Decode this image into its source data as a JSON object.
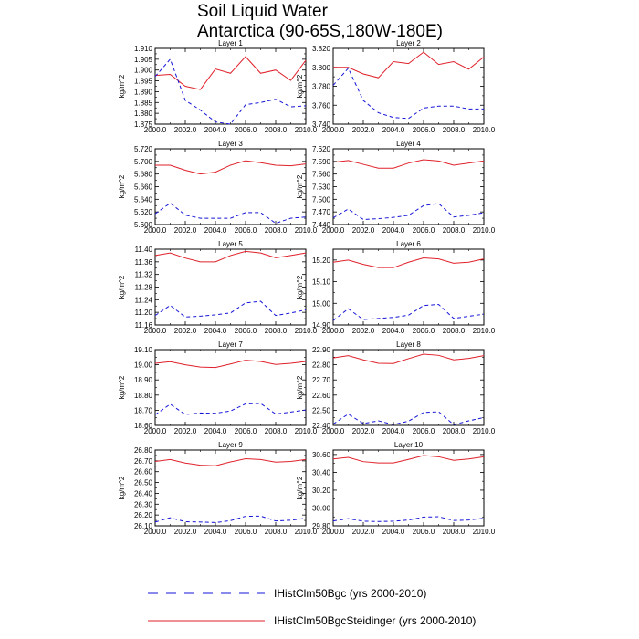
{
  "title_line1": "Soil Liquid Water",
  "title_line2": "Antarctica (90-65S,180W-180E)",
  "colors": {
    "dashed": "#1515d8",
    "solid": "#e0202a"
  },
  "legend": [
    {
      "label": "IHistClm50Bgc (yrs 2000-2010)",
      "style": "dashed",
      "color": "#1515d8"
    },
    {
      "label": "IHistClm50BgcSteidinger (yrs 2000-2010)",
      "style": "solid",
      "color": "#e0202a"
    }
  ],
  "chart_data": [
    {
      "type": "line",
      "title": "Layer 1",
      "xlabel": "",
      "ylabel": "kg/m^2",
      "xlim": [
        2000,
        2010
      ],
      "ylim": [
        1.875,
        1.91
      ],
      "xticks": [
        "2000.0",
        "2002.0",
        "2004.0",
        "2006.0",
        "2008.0",
        "2010.0"
      ],
      "yticks": [
        "1.875",
        "1.880",
        "1.885",
        "1.890",
        "1.895",
        "1.900",
        "1.905",
        "1.910"
      ],
      "x": [
        2000,
        2001,
        2002,
        2003,
        2004,
        2005,
        2006,
        2007,
        2008,
        2009,
        2010
      ],
      "series": [
        {
          "style": "solid",
          "values": [
            1.8975,
            1.898,
            1.8925,
            1.891,
            1.9005,
            1.8985,
            1.9062,
            1.8985,
            1.9,
            1.8952,
            1.9045
          ]
        },
        {
          "style": "dashed",
          "values": [
            1.897,
            1.905,
            1.886,
            1.8815,
            1.876,
            1.875,
            1.884,
            1.885,
            1.8865,
            1.883,
            1.8835
          ]
        }
      ]
    },
    {
      "type": "line",
      "title": "Layer 2",
      "xlabel": "",
      "ylabel": "kg/m^2",
      "xlim": [
        2000,
        2010
      ],
      "ylim": [
        3.74,
        3.82
      ],
      "xticks": [
        "2000.0",
        "2002.0",
        "2004.0",
        "2006.0",
        "2008.0",
        "2010.0"
      ],
      "yticks": [
        "3.740",
        "3.760",
        "3.780",
        "3.800",
        "3.820"
      ],
      "x": [
        2000,
        2001,
        2002,
        2003,
        2004,
        2005,
        2006,
        2007,
        2008,
        2009,
        2010
      ],
      "series": [
        {
          "style": "solid",
          "values": [
            3.8,
            3.8,
            3.793,
            3.789,
            3.806,
            3.804,
            3.816,
            3.803,
            3.806,
            3.798,
            3.811
          ]
        },
        {
          "style": "dashed",
          "values": [
            3.781,
            3.799,
            3.765,
            3.752,
            3.747,
            3.746,
            3.757,
            3.759,
            3.759,
            3.756,
            3.756
          ]
        }
      ]
    },
    {
      "type": "line",
      "title": "Layer 3",
      "xlabel": "",
      "ylabel": "kg/m^2",
      "xlim": [
        2000,
        2010
      ],
      "ylim": [
        5.6,
        5.72
      ],
      "xticks": [
        "2000.0",
        "2002.0",
        "2004.0",
        "2006.0",
        "2008.0",
        "2010.0"
      ],
      "yticks": [
        "5.600",
        "5.620",
        "5.640",
        "5.660",
        "5.680",
        "5.700",
        "5.720"
      ],
      "x": [
        2000,
        2001,
        2002,
        2003,
        2004,
        2005,
        2006,
        2007,
        2008,
        2009,
        2010
      ],
      "series": [
        {
          "style": "solid",
          "values": [
            5.694,
            5.694,
            5.686,
            5.68,
            5.683,
            5.694,
            5.701,
            5.698,
            5.694,
            5.693,
            5.696
          ]
        },
        {
          "style": "dashed",
          "values": [
            5.617,
            5.634,
            5.615,
            5.61,
            5.61,
            5.61,
            5.619,
            5.619,
            5.602,
            5.61,
            5.612
          ]
        }
      ]
    },
    {
      "type": "line",
      "title": "Layer 4",
      "xlabel": "",
      "ylabel": "kg/m^2",
      "xlim": [
        2000,
        2010
      ],
      "ylim": [
        7.44,
        7.62
      ],
      "xticks": [
        "2000.0",
        "2002.0",
        "2004.0",
        "2006.0",
        "2008.0",
        "2010.0"
      ],
      "yticks": [
        "7.440",
        "7.470",
        "7.500",
        "7.530",
        "7.560",
        "7.590",
        "7.620"
      ],
      "x": [
        2000,
        2001,
        2002,
        2003,
        2004,
        2005,
        2006,
        2007,
        2008,
        2009,
        2010
      ],
      "series": [
        {
          "style": "solid",
          "values": [
            7.588,
            7.592,
            7.583,
            7.574,
            7.574,
            7.586,
            7.594,
            7.591,
            7.581,
            7.586,
            7.591
          ]
        },
        {
          "style": "dashed",
          "values": [
            7.456,
            7.477,
            7.452,
            7.454,
            7.457,
            7.462,
            7.485,
            7.49,
            7.458,
            7.462,
            7.468
          ]
        }
      ]
    },
    {
      "type": "line",
      "title": "Layer 5",
      "xlabel": "",
      "ylabel": "kg/m^2",
      "xlim": [
        2000,
        2010
      ],
      "ylim": [
        11.16,
        11.4
      ],
      "xticks": [
        "2000.0",
        "2002.0",
        "2004.0",
        "2006.0",
        "2008.0",
        "2010.0"
      ],
      "yticks": [
        "11.16",
        "11.20",
        "11.24",
        "11.28",
        "11.32",
        "11.36",
        "11.40"
      ],
      "x": [
        2000,
        2001,
        2002,
        2003,
        2004,
        2005,
        2006,
        2007,
        2008,
        2009,
        2010
      ],
      "series": [
        {
          "style": "solid",
          "values": [
            11.38,
            11.388,
            11.372,
            11.36,
            11.36,
            11.38,
            11.393,
            11.388,
            11.373,
            11.38,
            11.388
          ]
        },
        {
          "style": "dashed",
          "values": [
            11.19,
            11.222,
            11.185,
            11.188,
            11.192,
            11.198,
            11.23,
            11.235,
            11.19,
            11.198,
            11.208
          ]
        }
      ]
    },
    {
      "type": "line",
      "title": "Layer 6",
      "xlabel": "",
      "ylabel": "kg/m^2",
      "xlim": [
        2000,
        2010
      ],
      "ylim": [
        14.9,
        15.25
      ],
      "xticks": [
        "2000.0",
        "2002.0",
        "2004.0",
        "2006.0",
        "2008.0",
        "2010.0"
      ],
      "yticks": [
        "14.90",
        "15.00",
        "15.10",
        "15.20"
      ],
      "x": [
        2000,
        2001,
        2002,
        2003,
        2004,
        2005,
        2006,
        2007,
        2008,
        2009,
        2010
      ],
      "series": [
        {
          "style": "solid",
          "values": [
            15.19,
            15.2,
            15.18,
            15.165,
            15.165,
            15.19,
            15.21,
            15.205,
            15.185,
            15.19,
            15.205
          ]
        },
        {
          "style": "dashed",
          "values": [
            14.92,
            14.975,
            14.925,
            14.93,
            14.935,
            14.945,
            14.99,
            14.995,
            14.93,
            14.94,
            14.95
          ]
        }
      ]
    },
    {
      "type": "line",
      "title": "Layer 7",
      "xlabel": "",
      "ylabel": "kg/m^2",
      "xlim": [
        2000,
        2010
      ],
      "ylim": [
        18.6,
        19.1
      ],
      "xticks": [
        "2000.0",
        "2002.0",
        "2004.0",
        "2006.0",
        "2008.0",
        "2010.0"
      ],
      "yticks": [
        "18.60",
        "18.70",
        "18.80",
        "18.90",
        "19.00",
        "19.10"
      ],
      "x": [
        2000,
        2001,
        2002,
        2003,
        2004,
        2005,
        2006,
        2007,
        2008,
        2009,
        2010
      ],
      "series": [
        {
          "style": "solid",
          "values": [
            19.01,
            19.02,
            19.0,
            18.985,
            18.982,
            19.005,
            19.03,
            19.022,
            19.002,
            19.01,
            19.022
          ]
        },
        {
          "style": "dashed",
          "values": [
            18.67,
            18.74,
            18.672,
            18.682,
            18.68,
            18.695,
            18.742,
            18.745,
            18.675,
            18.688,
            18.702
          ]
        }
      ]
    },
    {
      "type": "line",
      "title": "Layer 8",
      "xlabel": "",
      "ylabel": "kg/m^2",
      "xlim": [
        2000,
        2010
      ],
      "ylim": [
        22.4,
        22.9
      ],
      "xticks": [
        "2000.0",
        "2002.0",
        "2004.0",
        "2006.0",
        "2008.0",
        "2010.0"
      ],
      "yticks": [
        "22.40",
        "22.50",
        "22.60",
        "22.70",
        "22.80",
        "22.90"
      ],
      "x": [
        2000,
        2001,
        2002,
        2003,
        2004,
        2005,
        2006,
        2007,
        2008,
        2009,
        2010
      ],
      "series": [
        {
          "style": "solid",
          "values": [
            22.845,
            22.86,
            22.832,
            22.81,
            22.808,
            22.84,
            22.87,
            22.862,
            22.832,
            22.842,
            22.86
          ]
        },
        {
          "style": "dashed",
          "values": [
            22.408,
            22.475,
            22.412,
            22.43,
            22.405,
            22.428,
            22.485,
            22.49,
            22.405,
            22.43,
            22.452
          ]
        }
      ]
    },
    {
      "type": "line",
      "title": "Layer 9",
      "xlabel": "",
      "ylabel": "kg/m^2",
      "xlim": [
        2000,
        2010
      ],
      "ylim": [
        26.1,
        26.8
      ],
      "xticks": [
        "2000.0",
        "2002.0",
        "2004.0",
        "2006.0",
        "2008.0",
        "2010.0"
      ],
      "yticks": [
        "26.10",
        "26.20",
        "26.30",
        "26.40",
        "26.50",
        "26.60",
        "26.70",
        "26.80"
      ],
      "x": [
        2000,
        2001,
        2002,
        2003,
        2004,
        2005,
        2006,
        2007,
        2008,
        2009,
        2010
      ],
      "series": [
        {
          "style": "solid",
          "values": [
            26.695,
            26.712,
            26.68,
            26.66,
            26.655,
            26.69,
            26.72,
            26.712,
            26.688,
            26.695,
            26.712
          ]
        },
        {
          "style": "dashed",
          "values": [
            26.135,
            26.175,
            26.138,
            26.135,
            26.13,
            26.148,
            26.188,
            26.19,
            26.145,
            26.152,
            26.17
          ]
        }
      ]
    },
    {
      "type": "line",
      "title": "Layer 10",
      "xlabel": "",
      "ylabel": "kg/m^2",
      "xlim": [
        2000,
        2010
      ],
      "ylim": [
        29.8,
        30.65
      ],
      "xticks": [
        "2000.0",
        "2002.0",
        "2004.0",
        "2006.0",
        "2008.0",
        "2010.0"
      ],
      "yticks": [
        "29.80",
        "30.00",
        "30.20",
        "30.40",
        "30.60"
      ],
      "x": [
        2000,
        2001,
        2002,
        2003,
        2004,
        2005,
        2006,
        2007,
        2008,
        2009,
        2010
      ],
      "series": [
        {
          "style": "solid",
          "values": [
            30.55,
            30.568,
            30.52,
            30.505,
            30.505,
            30.545,
            30.588,
            30.575,
            30.535,
            30.55,
            30.575
          ]
        },
        {
          "style": "dashed",
          "values": [
            29.855,
            29.88,
            29.852,
            29.848,
            29.852,
            29.865,
            29.898,
            29.902,
            29.86,
            29.865,
            29.885
          ]
        }
      ]
    }
  ]
}
